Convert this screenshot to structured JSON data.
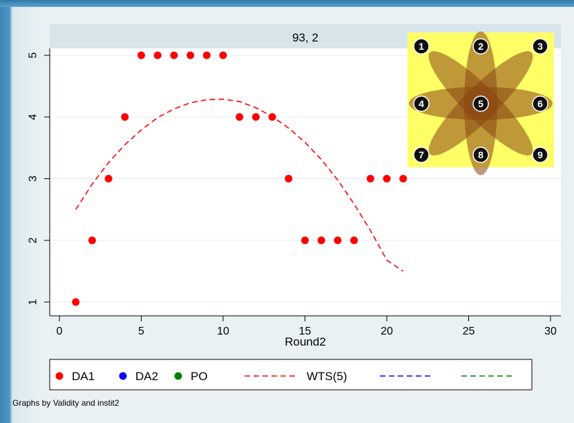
{
  "chart_data": {
    "type": "scatter",
    "panel_title": "93, 2",
    "xlabel": "Round2",
    "ylabel": "",
    "xlim": [
      0,
      30
    ],
    "ylim": [
      1,
      5
    ],
    "x_ticks": [
      0,
      5,
      10,
      15,
      20,
      25,
      30
    ],
    "y_ticks": [
      1,
      2,
      3,
      4,
      5
    ],
    "grid": "horizontal",
    "series": [
      {
        "name": "DA1",
        "kind": "points",
        "color": "#ff0000",
        "x": [
          1,
          2,
          3,
          4,
          5,
          6,
          7,
          8,
          9,
          10,
          11,
          12,
          13,
          14,
          15,
          16,
          17,
          18,
          19,
          20,
          21
        ],
        "y": [
          1,
          2,
          3,
          4,
          5,
          5,
          5,
          5,
          5,
          5,
          4,
          4,
          4,
          3,
          2,
          2,
          2,
          2,
          3,
          3,
          3
        ]
      }
    ],
    "fit_line": {
      "name": "WTS(5)",
      "color": "#ff0000",
      "x": [
        1,
        2,
        3,
        4,
        5,
        6,
        7,
        8,
        9,
        10,
        11,
        12,
        13,
        14,
        15,
        16,
        17,
        18,
        19,
        20,
        21
      ],
      "y": [
        2.5,
        2.91,
        3.26,
        3.55,
        3.79,
        3.99,
        4.13,
        4.23,
        4.28,
        4.29,
        4.25,
        4.15,
        4.01,
        3.82,
        3.59,
        3.31,
        2.98,
        2.59,
        2.16,
        1.68,
        1.5
      ]
    },
    "legend": {
      "placement": "bottom",
      "items": [
        {
          "label": "DA1",
          "kind": "dot",
          "color": "#ff0000"
        },
        {
          "label": "DA2",
          "kind": "dot",
          "color": "#0000ff"
        },
        {
          "label": "PO",
          "kind": "dot",
          "color": "#008000"
        },
        {
          "label": "WTS(5)",
          "kind": "dash",
          "color": "#ff0000"
        },
        {
          "label": "",
          "kind": "dash",
          "color": "#0000ff"
        },
        {
          "label": "",
          "kind": "dash",
          "color": "#008000"
        }
      ]
    },
    "note": "Graphs by Validity and instit2",
    "inset": {
      "background": "#ffff66",
      "petal_color": "#8b4513",
      "positions": [
        "1",
        "2",
        "3",
        "4",
        "5",
        "6",
        "7",
        "8",
        "9"
      ]
    }
  }
}
